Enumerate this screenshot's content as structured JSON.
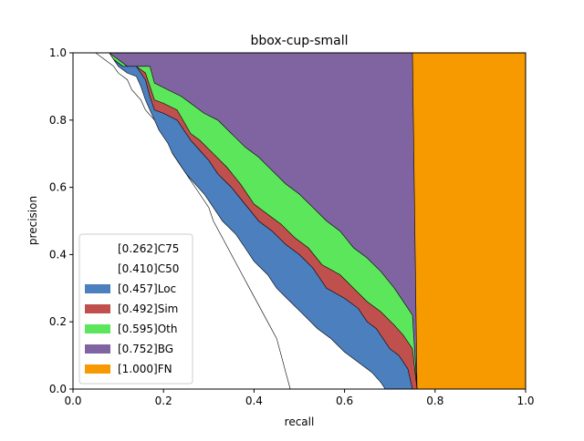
{
  "chart_data": {
    "type": "area",
    "title": "bbox-cup-small",
    "xlabel": "recall",
    "ylabel": "precision",
    "xlim": [
      0,
      1
    ],
    "ylim": [
      0,
      1
    ],
    "xticks": [
      "0.0",
      "0.2",
      "0.4",
      "0.6",
      "0.8",
      "1.0"
    ],
    "yticks": [
      "0.0",
      "0.2",
      "0.4",
      "0.6",
      "0.8",
      "1.0"
    ],
    "grid": false,
    "legend_position": "lower-left",
    "series": [
      {
        "name": "[0.262]C75",
        "color": "#ffffff",
        "points": [
          [
            0.0,
            1.0
          ],
          [
            0.02,
            1.0
          ],
          [
            0.05,
            1.0
          ],
          [
            0.07,
            0.98
          ],
          [
            0.09,
            0.96
          ],
          [
            0.1,
            0.94
          ],
          [
            0.12,
            0.92
          ],
          [
            0.13,
            0.89
          ],
          [
            0.15,
            0.86
          ],
          [
            0.16,
            0.83
          ],
          [
            0.18,
            0.8
          ],
          [
            0.19,
            0.77
          ],
          [
            0.21,
            0.73
          ],
          [
            0.22,
            0.7
          ],
          [
            0.24,
            0.66
          ],
          [
            0.26,
            0.62
          ],
          [
            0.28,
            0.58
          ],
          [
            0.3,
            0.54
          ],
          [
            0.31,
            0.5
          ],
          [
            0.33,
            0.45
          ],
          [
            0.35,
            0.4
          ],
          [
            0.37,
            0.35
          ],
          [
            0.39,
            0.3
          ],
          [
            0.41,
            0.25
          ],
          [
            0.43,
            0.2
          ],
          [
            0.45,
            0.15
          ],
          [
            0.46,
            0.1
          ],
          [
            0.47,
            0.05
          ],
          [
            0.48,
            0.0
          ]
        ]
      },
      {
        "name": "[0.410]C50",
        "color": "#ffffff",
        "points": [
          [
            0.0,
            1.0
          ],
          [
            0.02,
            1.0
          ],
          [
            0.04,
            1.0
          ],
          [
            0.08,
            1.0
          ],
          [
            0.09,
            0.98
          ],
          [
            0.1,
            0.96
          ],
          [
            0.12,
            0.94
          ],
          [
            0.14,
            0.93
          ],
          [
            0.15,
            0.9
          ],
          [
            0.16,
            0.86
          ],
          [
            0.17,
            0.83
          ],
          [
            0.18,
            0.8
          ],
          [
            0.19,
            0.76
          ],
          [
            0.21,
            0.72
          ],
          [
            0.23,
            0.68
          ],
          [
            0.25,
            0.64
          ],
          [
            0.27,
            0.61
          ],
          [
            0.29,
            0.58
          ],
          [
            0.31,
            0.54
          ],
          [
            0.33,
            0.5
          ],
          [
            0.36,
            0.46
          ],
          [
            0.38,
            0.42
          ],
          [
            0.4,
            0.38
          ],
          [
            0.43,
            0.34
          ],
          [
            0.45,
            0.3
          ],
          [
            0.48,
            0.26
          ],
          [
            0.51,
            0.22
          ],
          [
            0.54,
            0.18
          ],
          [
            0.57,
            0.15
          ],
          [
            0.6,
            0.11
          ],
          [
            0.63,
            0.08
          ],
          [
            0.66,
            0.05
          ],
          [
            0.68,
            0.02
          ],
          [
            0.69,
            0.0
          ]
        ]
      },
      {
        "name": "[0.457]Loc",
        "color": "#4c7fbe",
        "points": [
          [
            0.0,
            1.0
          ],
          [
            0.08,
            1.0
          ],
          [
            0.09,
            0.98
          ],
          [
            0.11,
            0.96
          ],
          [
            0.14,
            0.96
          ],
          [
            0.16,
            0.92
          ],
          [
            0.17,
            0.87
          ],
          [
            0.18,
            0.83
          ],
          [
            0.2,
            0.82
          ],
          [
            0.23,
            0.8
          ],
          [
            0.26,
            0.74
          ],
          [
            0.28,
            0.71
          ],
          [
            0.3,
            0.68
          ],
          [
            0.32,
            0.64
          ],
          [
            0.35,
            0.6
          ],
          [
            0.38,
            0.55
          ],
          [
            0.41,
            0.5
          ],
          [
            0.44,
            0.47
          ],
          [
            0.47,
            0.43
          ],
          [
            0.5,
            0.4
          ],
          [
            0.53,
            0.36
          ],
          [
            0.56,
            0.3
          ],
          [
            0.6,
            0.27
          ],
          [
            0.63,
            0.24
          ],
          [
            0.65,
            0.2
          ],
          [
            0.67,
            0.18
          ],
          [
            0.7,
            0.12
          ],
          [
            0.72,
            0.1
          ],
          [
            0.74,
            0.06
          ],
          [
            0.75,
            0.0
          ]
        ]
      },
      {
        "name": "[0.492]Sim",
        "color": "#c0504d",
        "points": [
          [
            0.0,
            1.0
          ],
          [
            0.08,
            1.0
          ],
          [
            0.09,
            0.98
          ],
          [
            0.11,
            0.96
          ],
          [
            0.14,
            0.96
          ],
          [
            0.16,
            0.94
          ],
          [
            0.18,
            0.86
          ],
          [
            0.2,
            0.85
          ],
          [
            0.23,
            0.83
          ],
          [
            0.26,
            0.76
          ],
          [
            0.28,
            0.74
          ],
          [
            0.31,
            0.7
          ],
          [
            0.34,
            0.66
          ],
          [
            0.37,
            0.61
          ],
          [
            0.4,
            0.55
          ],
          [
            0.43,
            0.52
          ],
          [
            0.46,
            0.49
          ],
          [
            0.49,
            0.45
          ],
          [
            0.52,
            0.42
          ],
          [
            0.55,
            0.37
          ],
          [
            0.59,
            0.34
          ],
          [
            0.62,
            0.3
          ],
          [
            0.65,
            0.26
          ],
          [
            0.68,
            0.23
          ],
          [
            0.71,
            0.19
          ],
          [
            0.73,
            0.16
          ],
          [
            0.75,
            0.12
          ],
          [
            0.76,
            0.0
          ]
        ]
      },
      {
        "name": "[0.595]Oth",
        "color": "#5ce65c",
        "points": [
          [
            0.0,
            1.0
          ],
          [
            0.08,
            1.0
          ],
          [
            0.1,
            0.98
          ],
          [
            0.12,
            0.96
          ],
          [
            0.17,
            0.96
          ],
          [
            0.18,
            0.91
          ],
          [
            0.21,
            0.89
          ],
          [
            0.24,
            0.87
          ],
          [
            0.26,
            0.85
          ],
          [
            0.29,
            0.82
          ],
          [
            0.32,
            0.8
          ],
          [
            0.35,
            0.76
          ],
          [
            0.38,
            0.72
          ],
          [
            0.41,
            0.69
          ],
          [
            0.44,
            0.65
          ],
          [
            0.47,
            0.61
          ],
          [
            0.5,
            0.58
          ],
          [
            0.53,
            0.54
          ],
          [
            0.56,
            0.5
          ],
          [
            0.59,
            0.47
          ],
          [
            0.62,
            0.42
          ],
          [
            0.65,
            0.39
          ],
          [
            0.68,
            0.35
          ],
          [
            0.71,
            0.3
          ],
          [
            0.73,
            0.26
          ],
          [
            0.75,
            0.22
          ],
          [
            0.76,
            0.0
          ]
        ]
      },
      {
        "name": "[0.752]BG",
        "color": "#8064a2",
        "points": [
          [
            0.0,
            1.0
          ],
          [
            0.75,
            1.0
          ],
          [
            0.76,
            0.0
          ]
        ]
      },
      {
        "name": "[1.000]FN",
        "color": "#f79a00",
        "points": [
          [
            0.0,
            1.0
          ],
          [
            1.0,
            1.0
          ],
          [
            1.0,
            0.0
          ]
        ]
      }
    ]
  }
}
